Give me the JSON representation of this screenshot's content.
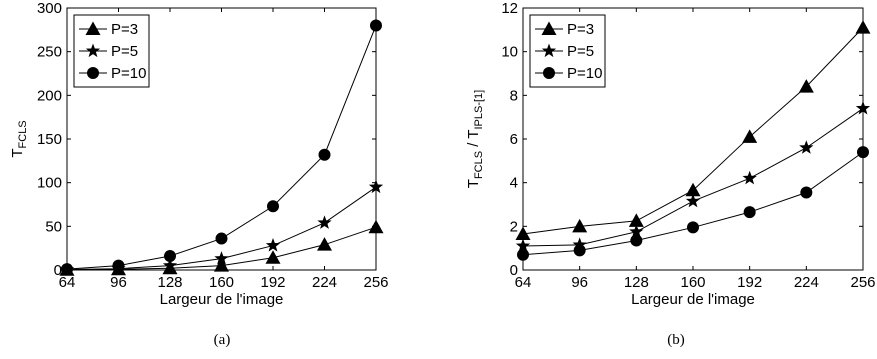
{
  "chart_data": [
    {
      "type": "line",
      "panel_label": "(a)",
      "xlabel": "Largeur de l'image",
      "ylabel_main": "T",
      "ylabel_sub": "FCLS",
      "ylabel_rest": "",
      "ylabel_sub2": "",
      "x": [
        64,
        96,
        128,
        160,
        192,
        224,
        256
      ],
      "xlim": [
        64,
        256
      ],
      "ylim": [
        0,
        300
      ],
      "yticks": [
        0,
        50,
        100,
        150,
        200,
        250,
        300
      ],
      "grid": false,
      "legend_position": "top-left",
      "series": [
        {
          "name": "P=3",
          "marker": "triangle",
          "values": [
            0.3,
            0.8,
            2,
            5,
            14,
            29,
            49
          ]
        },
        {
          "name": "P=5",
          "marker": "star",
          "values": [
            0.5,
            1.5,
            5,
            13,
            28,
            54,
            95
          ]
        },
        {
          "name": "P=10",
          "marker": "circle",
          "values": [
            1,
            5,
            16,
            36,
            73,
            132,
            280
          ]
        }
      ]
    },
    {
      "type": "line",
      "panel_label": "(b)",
      "xlabel": "Largeur de l'image",
      "ylabel_main": "T",
      "ylabel_sub": "FCLS",
      "ylabel_rest": " / T",
      "ylabel_sub2": "IPLS-[1]",
      "x": [
        64,
        96,
        128,
        160,
        192,
        224,
        256
      ],
      "xlim": [
        64,
        256
      ],
      "ylim": [
        0,
        12
      ],
      "yticks": [
        0,
        2,
        4,
        6,
        8,
        10,
        12
      ],
      "grid": false,
      "legend_position": "top-left",
      "series": [
        {
          "name": "P=3",
          "marker": "triangle",
          "values": [
            1.65,
            2.0,
            2.25,
            3.65,
            6.1,
            8.4,
            11.1
          ]
        },
        {
          "name": "P=5",
          "marker": "star",
          "values": [
            1.1,
            1.15,
            1.75,
            3.15,
            4.2,
            5.6,
            7.4
          ]
        },
        {
          "name": "P=10",
          "marker": "circle",
          "values": [
            0.7,
            0.9,
            1.35,
            1.95,
            2.65,
            3.55,
            5.4
          ]
        }
      ]
    }
  ]
}
